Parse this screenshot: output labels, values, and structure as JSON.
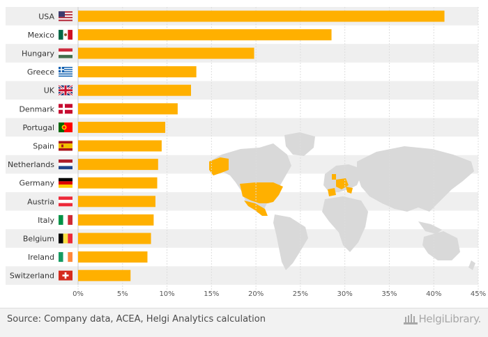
{
  "chart_data": {
    "type": "bar",
    "orientation": "horizontal",
    "categories": [
      "USA",
      "Mexico",
      "Hungary",
      "Greece",
      "UK",
      "Denmark",
      "Portugal",
      "Spain",
      "Netherlands",
      "Germany",
      "Austria",
      "Italy",
      "Belgium",
      "Ireland",
      "Switzerland"
    ],
    "values": [
      41.2,
      28.5,
      19.8,
      13.3,
      12.7,
      11.2,
      9.8,
      9.4,
      9.0,
      8.9,
      8.7,
      8.5,
      8.2,
      7.8,
      5.9
    ],
    "xlim": [
      0,
      45
    ],
    "xticks": [
      "0%",
      "5%",
      "10%",
      "15%",
      "20%",
      "25%",
      "30%",
      "35%",
      "40%",
      "45%"
    ],
    "grid": true,
    "title": "",
    "xlabel": "",
    "ylabel": ""
  },
  "colors": {
    "bar": "#ffb000",
    "map_land": "#d9d9d9",
    "map_highlight": "#ffb000",
    "stripe": "#efefef"
  },
  "flags": [
    "us-flag-icon",
    "mexico-flag-icon",
    "hungary-flag-icon",
    "greece-flag-icon",
    "uk-flag-icon",
    "denmark-flag-icon",
    "portugal-flag-icon",
    "spain-flag-icon",
    "netherlands-flag-icon",
    "germany-flag-icon",
    "austria-flag-icon",
    "italy-flag-icon",
    "belgium-flag-icon",
    "ireland-flag-icon",
    "switzerland-flag-icon"
  ],
  "footer": {
    "source": "Source: Company data, ACEA, Helgi Analytics calculation",
    "logo_text": "HelgiLibrary."
  }
}
